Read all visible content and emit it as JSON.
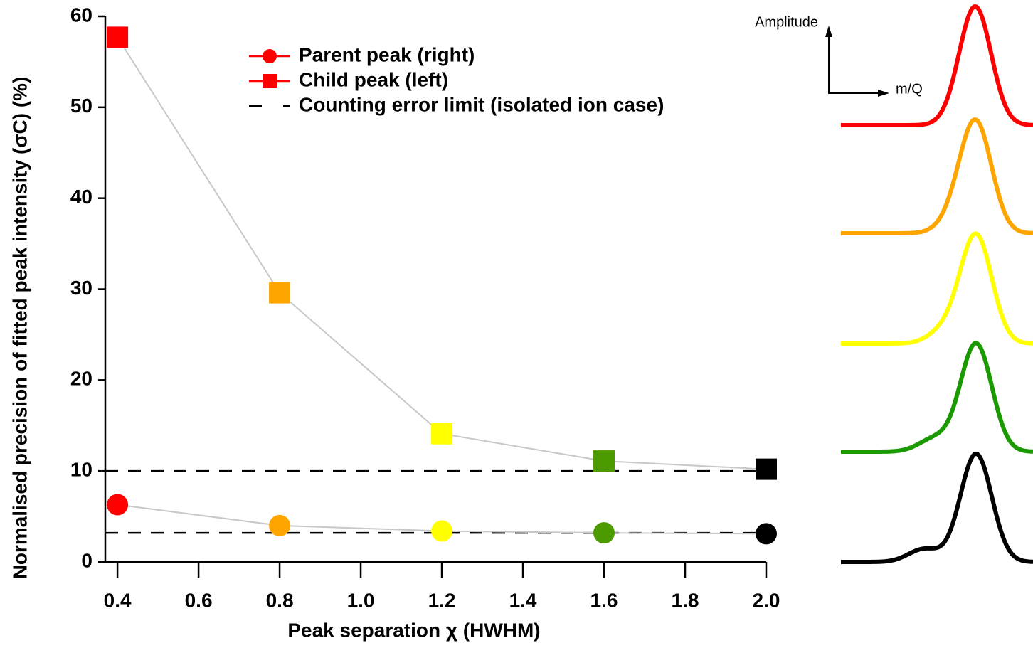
{
  "chart_data": {
    "type": "line",
    "xlabel": "Peak separation χ (HWHM)",
    "ylabel": "Normalised precision of fitted peak intensity (σC) (%)",
    "x": [
      0.4,
      0.8,
      1.2,
      1.6,
      2.0
    ],
    "point_colors": [
      "#ff0000",
      "#ffa500",
      "#ffff00",
      "#4a9a00",
      "#000000"
    ],
    "line_color": "#c8c8c8",
    "series": [
      {
        "name": "Parent peak (right)",
        "color": "#ff0000",
        "marker": "circle",
        "values": [
          6.3,
          4.0,
          3.4,
          3.2,
          3.1
        ]
      },
      {
        "name": "Child peak (left)",
        "color": "#ff0000",
        "marker": "square",
        "values": [
          57.7,
          29.6,
          14.1,
          11.1,
          10.2
        ]
      }
    ],
    "reference_lines": {
      "name": "Counting error limit (isolated ion case)",
      "color": "#000000",
      "values": [
        10,
        3.2
      ]
    },
    "xlim": [
      0.37,
      2.0
    ],
    "ylim": [
      0,
      60
    ],
    "xticks": [
      0.4,
      0.6,
      0.8,
      {
        "value": 1.0,
        "label": "1.0"
      },
      1.2,
      1.4,
      1.6,
      1.8,
      {
        "value": 2.0,
        "label": "2.0"
      }
    ],
    "yticks": [
      0,
      10,
      20,
      30,
      40,
      50,
      60
    ],
    "inset": {
      "ylabel": "Amplitude",
      "xlabel": "m/Q"
    }
  }
}
